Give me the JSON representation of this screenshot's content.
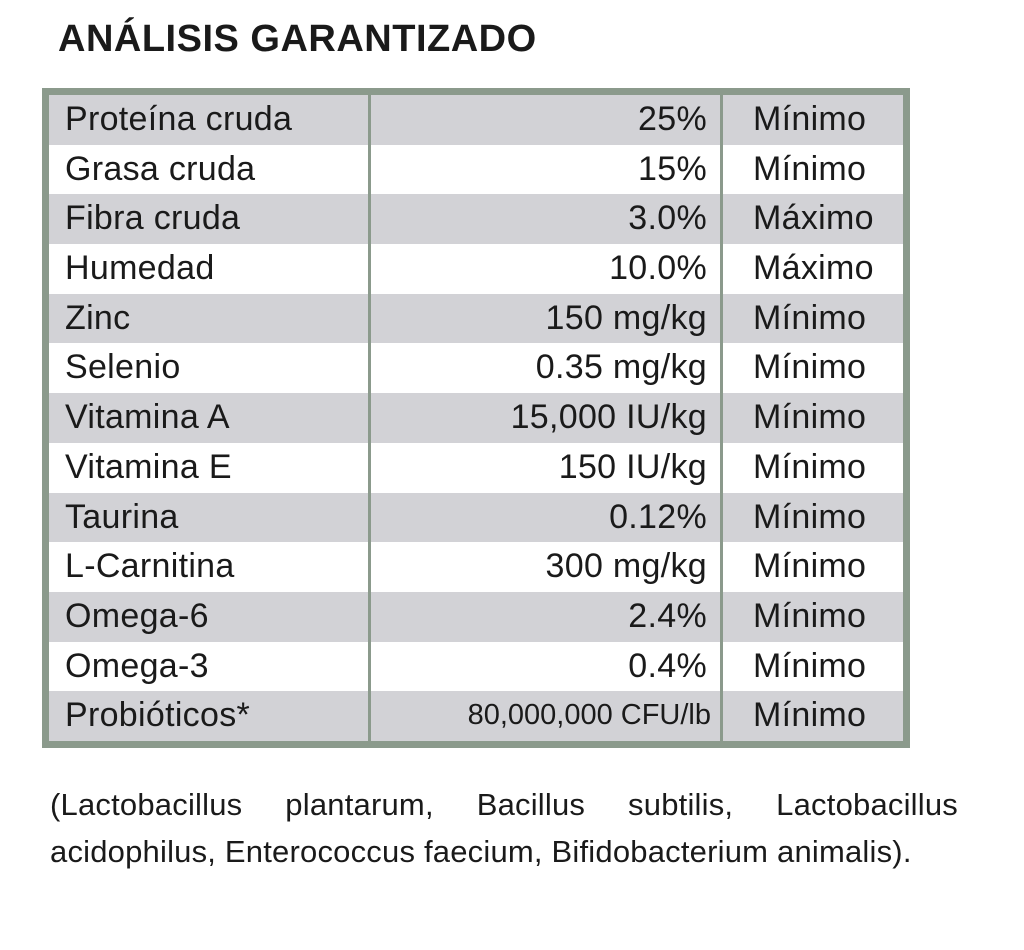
{
  "title": "ANÁLISIS GARANTIZADO",
  "table": {
    "rows": [
      {
        "nutrient": "Proteína cruda",
        "value": "25%",
        "limit": "Mínimo"
      },
      {
        "nutrient": "Grasa cruda",
        "value": "15%",
        "limit": "Mínimo"
      },
      {
        "nutrient": "Fibra cruda",
        "value": "3.0%",
        "limit": "Máximo"
      },
      {
        "nutrient": "Humedad",
        "value": "10.0%",
        "limit": "Máximo"
      },
      {
        "nutrient": "Zinc",
        "value": "150 mg/kg",
        "limit": "Mínimo"
      },
      {
        "nutrient": "Selenio",
        "value": "0.35 mg/kg",
        "limit": "Mínimo"
      },
      {
        "nutrient": "Vitamina A",
        "value": "15,000 IU/kg",
        "limit": "Mínimo"
      },
      {
        "nutrient": "Vitamina E",
        "value": "150 IU/kg",
        "limit": "Mínimo"
      },
      {
        "nutrient": "Taurina",
        "value": "0.12%",
        "limit": "Mínimo"
      },
      {
        "nutrient": "L-Carnitina",
        "value": "300 mg/kg",
        "limit": "Mínimo"
      },
      {
        "nutrient": "Omega-6",
        "value": "2.4%",
        "limit": "Mínimo"
      },
      {
        "nutrient": "Omega-3",
        "value": "0.4%",
        "limit": "Mínimo"
      },
      {
        "nutrient": "Probióticos*",
        "value": "80,000,000 CFU/lb",
        "limit": "Mínimo"
      }
    ]
  },
  "footnote": "(Lactobacillus plantarum, Bacillus subtilis, Lactobacillus acidophilus, Enterococcus faecium, Bifidobacterium animalis).",
  "colors": {
    "border_green": "#8b9a8c",
    "stripe_gray": "#d2d2d6",
    "text_black": "#1a1a1a"
  }
}
